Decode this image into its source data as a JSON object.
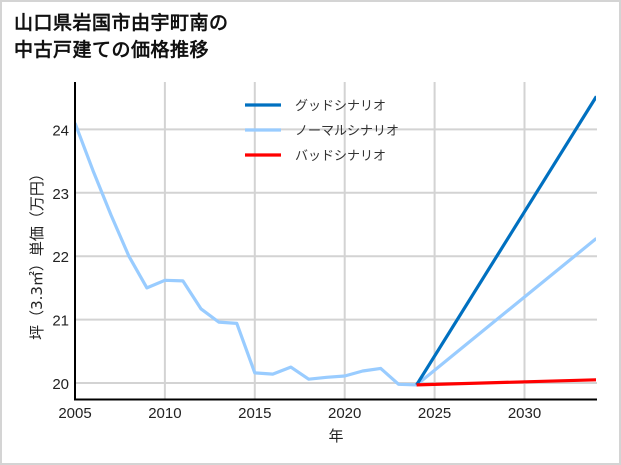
{
  "title": {
    "line1": "山口県岩国市由宇町南の",
    "line2": "中古戸建ての価格推移"
  },
  "chart_data": {
    "type": "line",
    "title": "山口県岩国市由宇町南の中古戸建ての価格推移",
    "xlabel": "年",
    "ylabel": "坪（3.3㎡）単価（万円）",
    "xlim": [
      2005,
      2034
    ],
    "ylim": [
      19.75,
      24.8
    ],
    "x_ticks": [
      2005,
      2010,
      2015,
      2020,
      2025,
      2030
    ],
    "y_ticks": [
      20,
      21,
      22,
      23,
      24
    ],
    "grid": true,
    "legend_position": "upper center",
    "series": [
      {
        "name": "グッドシナリオ",
        "color": "#0070c0",
        "x": [
          2024,
          2034
        ],
        "values": [
          19.97,
          24.52
        ]
      },
      {
        "name": "ノーマルシナリオ",
        "color": "#99ccff",
        "x": [
          2005,
          2006,
          2007,
          2008,
          2009,
          2010,
          2011,
          2012,
          2013,
          2014,
          2015,
          2016,
          2017,
          2018,
          2019,
          2020,
          2021,
          2022,
          2023,
          2024,
          2034
        ],
        "values": [
          24.1,
          23.35,
          22.65,
          22.0,
          21.5,
          21.62,
          21.61,
          21.17,
          20.96,
          20.94,
          20.16,
          20.14,
          20.25,
          20.06,
          20.09,
          20.11,
          20.19,
          20.23,
          19.98,
          19.97,
          22.28
        ]
      },
      {
        "name": "バッドシナリオ",
        "color": "#ff0000",
        "x": [
          2024,
          2034
        ],
        "values": [
          19.97,
          20.05
        ]
      }
    ]
  },
  "legend": {
    "items": [
      {
        "label": "グッドシナリオ",
        "color": "#0070c0"
      },
      {
        "label": "ノーマルシナリオ",
        "color": "#99ccff"
      },
      {
        "label": "バッドシナリオ",
        "color": "#ff0000"
      }
    ]
  },
  "axes": {
    "xlabel": "年",
    "ylabel": "坪（3.3㎡）単価（万円）"
  }
}
